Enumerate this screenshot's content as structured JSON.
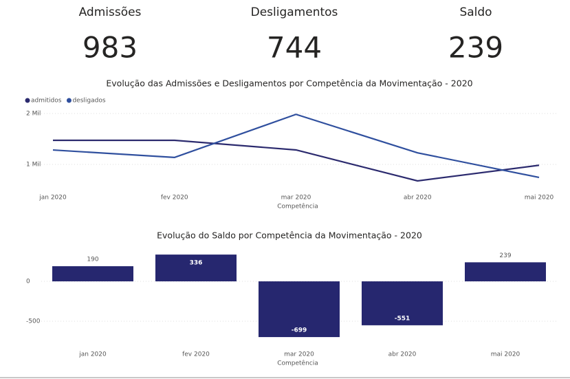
{
  "cards": [
    {
      "label": "Admissões",
      "value": 983
    },
    {
      "label": "Desligamentos",
      "value": 744
    },
    {
      "label": "Saldo",
      "value": 239
    }
  ],
  "chart_data": [
    {
      "type": "line",
      "title": "Evolução das Admissões e Desligamentos por Competência da Movimentação - 2020",
      "x_label": "Competência",
      "categories": [
        "jan 2020",
        "fev 2020",
        "mar 2020",
        "abr 2020",
        "mai 2020"
      ],
      "series": [
        {
          "name": "admitidos",
          "color": "#2b2a6e",
          "values": [
            1473,
            1473,
            1284,
            676,
            983
          ]
        },
        {
          "name": "desligados",
          "color": "#2f4f9e",
          "values": [
            1283,
            1137,
            1983,
            1227,
            744
          ]
        }
      ],
      "ylim": [
        650,
        2100
      ],
      "yticks": [
        {
          "value": 1000,
          "label": "1 Mil"
        },
        {
          "value": 2000,
          "label": "2 Mil"
        }
      ],
      "grid": true,
      "legend": "top-left"
    },
    {
      "type": "bar",
      "title": "Evolução do Saldo por Competência da Movimentação - 2020",
      "x_label": "Competência",
      "categories": [
        "jan 2020",
        "fev 2020",
        "mar 2020",
        "abr 2020",
        "mai 2020"
      ],
      "values": [
        190,
        336,
        -699,
        -551,
        239
      ],
      "color": "#26276f",
      "ylim": [
        -720,
        380
      ],
      "yticks": [
        -500,
        0
      ],
      "grid": true
    }
  ]
}
